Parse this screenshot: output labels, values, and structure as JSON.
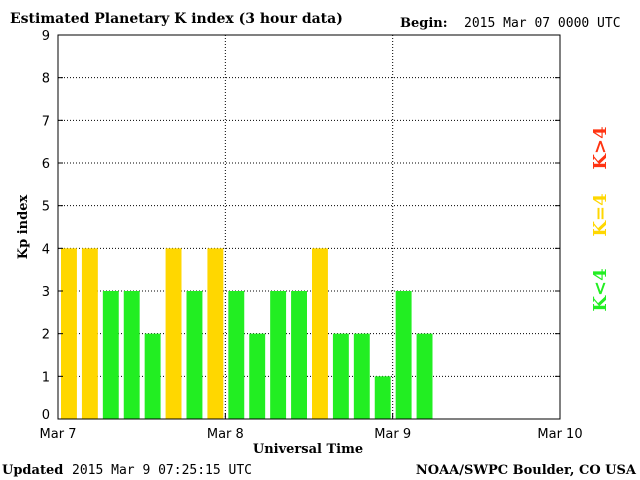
{
  "header": {
    "title": "Estimated Planetary K index (3 hour data)",
    "begin_label": "Begin:",
    "begin_value": "2015 Mar 07 0000 UTC"
  },
  "footer": {
    "updated_label": "Updated",
    "updated_value": "2015 Mar  9 07:25:15 UTC",
    "credit": "NOAA/SWPC Boulder, CO USA"
  },
  "legend": [
    {
      "label": "K<4",
      "color": "#22ee22"
    },
    {
      "label": "K=4",
      "color": "#ffd700"
    },
    {
      "label": "K>4",
      "color": "#ff3311"
    }
  ],
  "colors": {
    "below_4": "#22ee22",
    "equal_4": "#ffd700",
    "above_4": "#ff3311"
  },
  "chart_data": {
    "type": "bar",
    "title": "Estimated Planetary K index (3 hour data)",
    "xlabel": "Universal Time",
    "ylabel": "Kp index",
    "ylim": [
      0,
      9
    ],
    "yticks": [
      "0",
      "1",
      "2",
      "3",
      "4",
      "5",
      "6",
      "7",
      "8",
      "9"
    ],
    "xticks": [
      "Mar 7",
      "Mar 8",
      "Mar 9",
      "Mar 10"
    ],
    "grid": true,
    "bar_interval_hours": 3,
    "values": [
      4,
      4,
      3,
      3,
      2,
      4,
      3,
      4,
      3,
      2,
      3,
      3,
      4,
      2,
      2,
      1,
      3,
      2
    ]
  }
}
